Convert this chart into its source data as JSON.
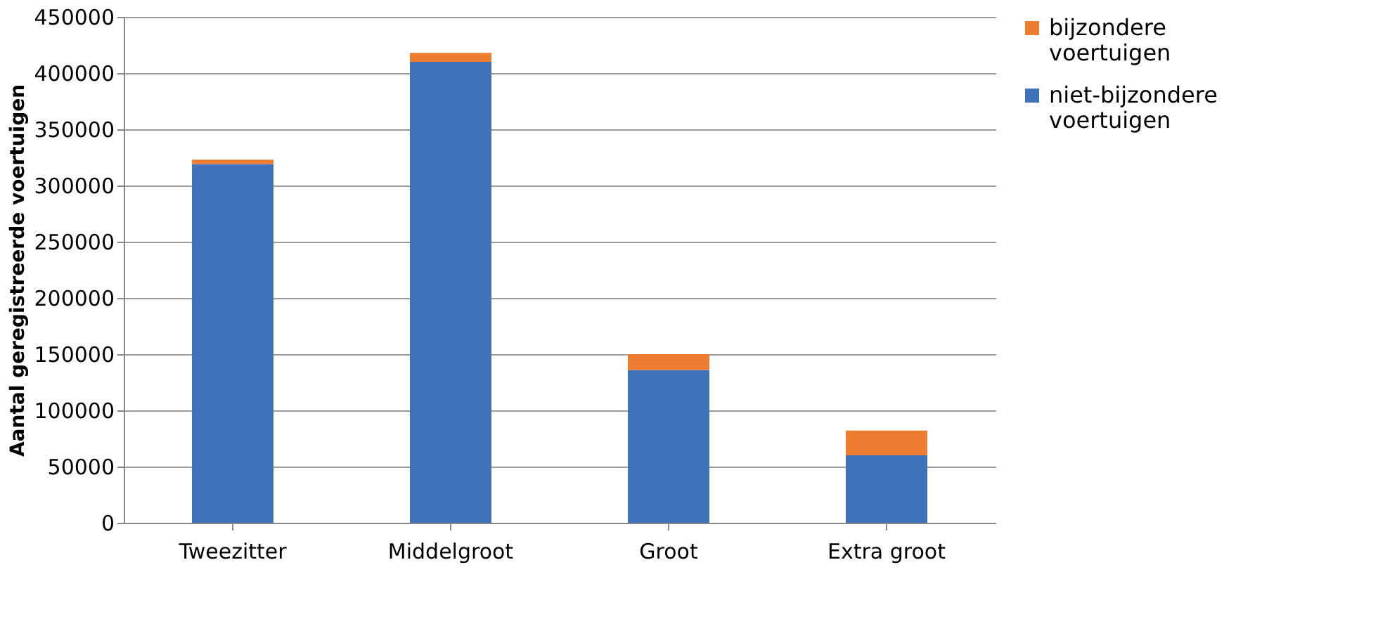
{
  "chart_data": {
    "type": "bar",
    "stacked": true,
    "ylabel": "Aantal geregistreerde voertuigen",
    "categories": [
      "Tweezitter",
      "Middelgroot",
      "Groot",
      "Extra groot"
    ],
    "series": [
      {
        "name": "niet-bijzondere voertuigen",
        "color": "#3f72b9",
        "values": [
          319000,
          410000,
          136000,
          60000
        ]
      },
      {
        "name": "bijzondere voertuigen",
        "color": "#ed7d31",
        "values": [
          4000,
          8000,
          14000,
          22000
        ]
      }
    ],
    "ylim": [
      0,
      450000
    ],
    "yticks": [
      0,
      50000,
      100000,
      150000,
      200000,
      250000,
      300000,
      350000,
      400000,
      450000
    ],
    "grid": "y",
    "legend": "right"
  }
}
